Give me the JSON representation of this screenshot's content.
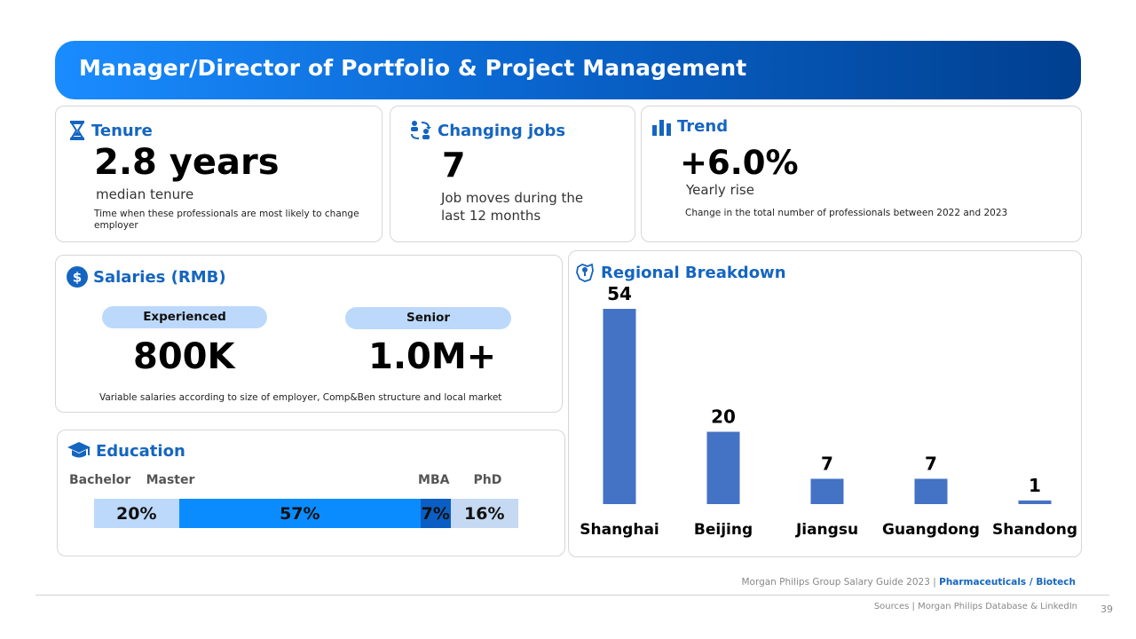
{
  "header": {
    "title": "Manager/Director of Portfolio & Project Management"
  },
  "tenure": {
    "title": "Tenure",
    "value": "2.8 years",
    "label": "median tenure",
    "note": "Time when these professionals are most likely to  change employer"
  },
  "jobs": {
    "title": "Changing jobs",
    "value": "7",
    "label": "Job moves during the last 12 months"
  },
  "trend": {
    "title": "Trend",
    "value": "+6.0%",
    "label": "Yearly rise",
    "note": "Change in the total number of professionals between 2022 and 2023"
  },
  "salaries": {
    "title": "Salaries (RMB)",
    "experienced_label": "Experienced",
    "experienced_value": "800K",
    "senior_label": "Senior",
    "senior_value": "1.0M+",
    "note": "Variable salaries according to size of employer, Comp&Ben structure and local market"
  },
  "education": {
    "title": "Education",
    "segments": [
      {
        "name": "Bachelor",
        "value": 20,
        "display": "20%",
        "color": "#bcd9fb"
      },
      {
        "name": "Master",
        "value": 57,
        "display": "57%",
        "color": "#0a8cff"
      },
      {
        "name": "MBA",
        "value": 7,
        "display": "7%",
        "color": "#0b5fc4"
      },
      {
        "name": "PhD",
        "value": 16,
        "display": "16%",
        "color": "#c5d9f2"
      }
    ]
  },
  "regional": {
    "title": "Regional Breakdown"
  },
  "chart_data": {
    "type": "bar",
    "title": "Regional Breakdown",
    "categories": [
      "Shanghai",
      "Beijing",
      "Jiangsu",
      "Guangdong",
      "Shandong"
    ],
    "values": [
      54,
      20,
      7,
      7,
      1
    ],
    "xlabel": "",
    "ylabel": "",
    "ylim": [
      0,
      54
    ],
    "grid": false,
    "bar_color": "#4472c4"
  },
  "footer": {
    "guide": "Morgan Philips Group Salary Guide 2023 |",
    "sector": "Pharmaceuticals / Biotech",
    "sources": "Sources | Morgan Philips Database & LinkedIn",
    "page": "39"
  },
  "colors": {
    "brand": "#1565c0",
    "header_start": "#1a8cff",
    "header_end": "#003f8f"
  }
}
